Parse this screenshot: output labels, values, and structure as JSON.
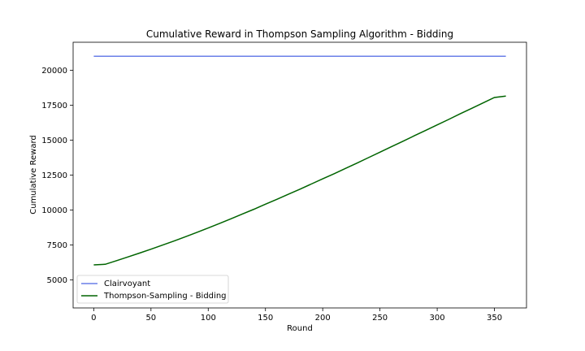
{
  "chart_data": {
    "type": "line",
    "title": "Cumulative Reward in Thompson Sampling Algorithm - Bidding",
    "xlabel": "Round",
    "ylabel": "Cumulative Reward",
    "xlim": [
      -18,
      378
    ],
    "ylim": [
      3000,
      22000
    ],
    "xticks": [
      0,
      50,
      100,
      150,
      200,
      250,
      300,
      350
    ],
    "yticks": [
      5000,
      7500,
      10000,
      12500,
      15000,
      17500,
      20000
    ],
    "grid": false,
    "legend_position": "lower-left",
    "series": [
      {
        "name": "Clairvoyant",
        "color": "#6a7fe8",
        "x": [
          0,
          360
        ],
        "y": [
          21000,
          21000
        ]
      },
      {
        "name": "Thompson-Sampling - Bidding",
        "color": "#006400",
        "x": [
          0,
          10,
          20,
          30,
          40,
          50,
          60,
          70,
          80,
          90,
          100,
          110,
          120,
          130,
          140,
          150,
          160,
          170,
          180,
          190,
          200,
          210,
          220,
          230,
          240,
          250,
          260,
          270,
          280,
          290,
          300,
          310,
          320,
          330,
          340,
          350,
          360
        ],
        "y": [
          6080,
          6120,
          6380,
          6650,
          6920,
          7200,
          7490,
          7780,
          8090,
          8400,
          8720,
          9050,
          9380,
          9720,
          10060,
          10420,
          10770,
          11130,
          11490,
          11860,
          12230,
          12600,
          12980,
          13360,
          13750,
          14140,
          14530,
          14920,
          15310,
          15700,
          16090,
          16480,
          16880,
          17270,
          17660,
          18050,
          18150
        ]
      }
    ]
  }
}
